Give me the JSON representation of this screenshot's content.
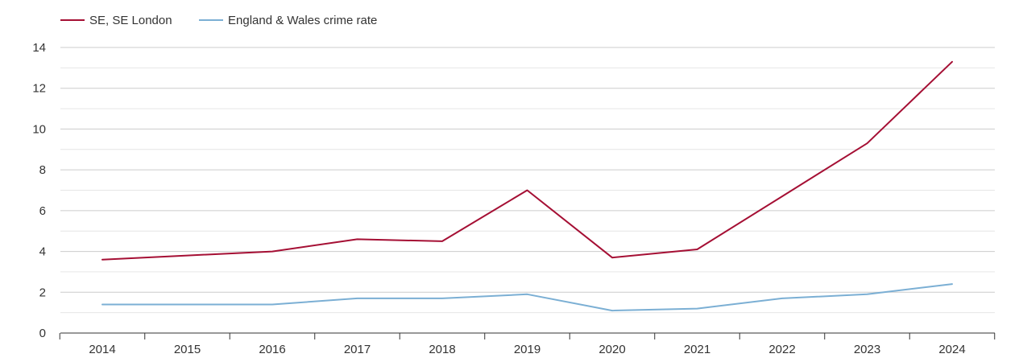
{
  "chart_data": {
    "type": "line",
    "title": "",
    "xlabel": "",
    "ylabel": "",
    "x": [
      "2014",
      "2015",
      "2016",
      "2017",
      "2018",
      "2019",
      "2020",
      "2021",
      "2022",
      "2023",
      "2024"
    ],
    "y_ticks": [
      "0",
      "2",
      "4",
      "6",
      "8",
      "10",
      "12",
      "14"
    ],
    "ylim": [
      0,
      14
    ],
    "grid": true,
    "legend_position": "top-left",
    "series": [
      {
        "name": "SE, SE London",
        "color": "#a50f34",
        "values": [
          3.6,
          3.8,
          4.0,
          4.6,
          4.5,
          7.0,
          3.7,
          4.1,
          6.7,
          9.3,
          13.3
        ]
      },
      {
        "name": "England & Wales crime rate",
        "color": "#7bafd4",
        "values": [
          1.4,
          1.4,
          1.4,
          1.7,
          1.7,
          1.9,
          1.1,
          1.2,
          1.7,
          1.9,
          2.4
        ]
      }
    ]
  }
}
